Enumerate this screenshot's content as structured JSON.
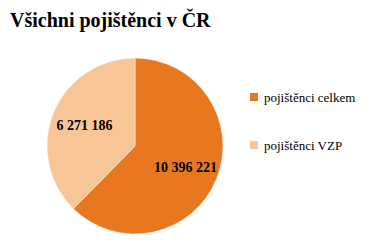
{
  "chart_data": {
    "type": "pie",
    "title": "Všichni pojištěnci v ČR",
    "categories": [
      "pojištěnci celkem",
      "pojištěnci VZP"
    ],
    "values": [
      10396221,
      6271186
    ],
    "value_labels": [
      "10 396 221",
      "6 271 186"
    ],
    "colors": [
      "#e8781f",
      "#f8c597"
    ],
    "data_labels": true,
    "legend": "right"
  }
}
